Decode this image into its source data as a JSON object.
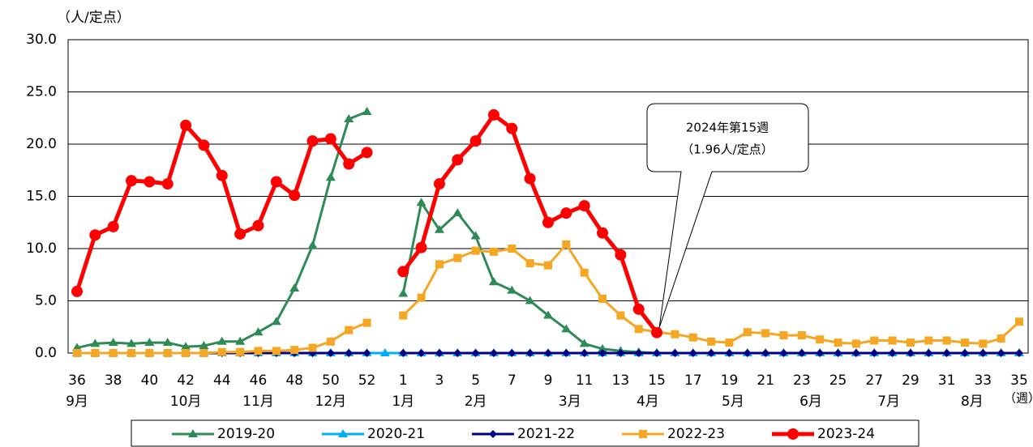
{
  "chart_data": {
    "type": "line",
    "y_unit_label": "（人/定点）",
    "x_unit_label": "（週）",
    "categories": [
      "36",
      null,
      "38",
      null,
      "40",
      null,
      "42",
      null,
      "44",
      null,
      "46",
      null,
      "48",
      null,
      "50",
      null,
      "52",
      null,
      "1",
      null,
      "3",
      null,
      "5",
      null,
      "7",
      null,
      "9",
      null,
      "11",
      null,
      "13",
      null,
      "15",
      null,
      "17",
      null,
      "19",
      null,
      "21",
      null,
      "23",
      null,
      "25",
      null,
      "27",
      null,
      "29",
      null,
      "31",
      null,
      "33",
      null,
      "35"
    ],
    "month_labels": [
      "9月",
      "10月",
      "11月",
      "12月",
      "1月",
      "2月",
      "3月",
      "4月",
      "5月",
      "6月",
      "7月",
      "8月"
    ],
    "ylim": [
      0,
      30
    ],
    "yticks": [
      {
        "value": 0,
        "label": "0.0"
      },
      {
        "value": 5,
        "label": "5.0"
      },
      {
        "value": 10,
        "label": "10.0"
      },
      {
        "value": 15,
        "label": "15.0"
      },
      {
        "value": 20,
        "label": "20.0"
      },
      {
        "value": 25,
        "label": "25.0"
      },
      {
        "value": 30,
        "label": "30.0"
      }
    ],
    "grid": true,
    "series": [
      {
        "name": "2019-20",
        "color": "#2e8b57",
        "marker": "triangle",
        "values": [
          0.5,
          0.9,
          1.0,
          0.9,
          1.0,
          1.0,
          0.6,
          0.7,
          1.1,
          1.1,
          2.0,
          3.0,
          6.2,
          10.3,
          16.8,
          22.4,
          23.1,
          null,
          5.7,
          14.4,
          11.8,
          13.4,
          11.2,
          6.8,
          6.0,
          5.0,
          3.6,
          2.3,
          0.9,
          0.4,
          0.2,
          0.1,
          0.0,
          0.0,
          0.0,
          0.0,
          0.0,
          0.0,
          0.0,
          0.0,
          0.0,
          0.0,
          0.0,
          0.0,
          0.0,
          0.0,
          0.0,
          0.0,
          0.0,
          0.0,
          0.0,
          0.0,
          0.0
        ]
      },
      {
        "name": "2020-21",
        "color": "#00b0f0",
        "marker": "triangle",
        "values": [
          0.0,
          0.0,
          0.0,
          0.0,
          0.0,
          0.0,
          0.0,
          0.0,
          0.0,
          0.0,
          0.0,
          0.0,
          0.0,
          0.0,
          0.0,
          0.0,
          0.0,
          0.0,
          0.0,
          0.0,
          0.0,
          0.0,
          0.0,
          0.0,
          0.0,
          0.0,
          0.0,
          0.0,
          0.0,
          0.0,
          0.0,
          0.0,
          0.0,
          0.0,
          0.0,
          0.0,
          0.0,
          0.0,
          0.0,
          0.0,
          0.0,
          0.0,
          0.0,
          0.0,
          0.0,
          0.0,
          0.0,
          0.0,
          0.0,
          0.0,
          0.0,
          0.0,
          0.0
        ]
      },
      {
        "name": "2021-22",
        "color": "#000080",
        "marker": "diamond",
        "values": [
          0.0,
          0.0,
          0.0,
          0.0,
          0.0,
          0.0,
          0.0,
          0.0,
          0.0,
          0.0,
          0.0,
          0.0,
          0.0,
          0.0,
          0.0,
          0.0,
          0.0,
          null,
          0.0,
          0.0,
          0.0,
          0.0,
          0.0,
          0.0,
          0.0,
          0.0,
          0.0,
          0.0,
          0.0,
          0.0,
          0.0,
          0.0,
          0.0,
          0.0,
          0.0,
          0.0,
          0.0,
          0.0,
          0.0,
          0.0,
          0.0,
          0.0,
          0.0,
          0.0,
          0.0,
          0.0,
          0.0,
          0.0,
          0.0,
          0.0,
          0.0,
          0.0,
          0.0
        ]
      },
      {
        "name": "2022-23",
        "color": "#f5a623",
        "marker": "square",
        "values": [
          0.0,
          0.0,
          0.0,
          0.0,
          0.0,
          0.0,
          0.0,
          0.0,
          0.1,
          0.1,
          0.2,
          0.2,
          0.3,
          0.5,
          1.1,
          2.2,
          2.9,
          null,
          3.6,
          5.3,
          8.5,
          9.1,
          9.8,
          9.7,
          10.0,
          8.6,
          8.4,
          10.4,
          7.7,
          5.2,
          3.6,
          2.3,
          2.0,
          1.8,
          1.5,
          1.1,
          1.0,
          2.0,
          1.9,
          1.7,
          1.7,
          1.3,
          1.0,
          0.9,
          1.2,
          1.2,
          1.0,
          1.2,
          1.2,
          1.0,
          0.9,
          1.4,
          3.0
        ]
      },
      {
        "name": "2023-24",
        "color": "#ff0000",
        "marker": "circle",
        "values": [
          5.9,
          11.3,
          12.1,
          16.5,
          16.4,
          16.2,
          21.8,
          19.9,
          17.0,
          11.4,
          12.2,
          16.4,
          15.1,
          20.3,
          20.5,
          18.1,
          19.2,
          null,
          7.8,
          10.1,
          16.2,
          18.5,
          20.3,
          22.8,
          21.5,
          16.7,
          12.5,
          13.4,
          14.1,
          11.5,
          9.4,
          4.2,
          1.96,
          null,
          null,
          null,
          null,
          null,
          null,
          null,
          null,
          null,
          null,
          null,
          null,
          null,
          null,
          null,
          null,
          null,
          null,
          null,
          null
        ]
      }
    ],
    "annotation": {
      "lines": [
        "2024年第15週",
        "（1.96人/定点）"
      ]
    }
  }
}
